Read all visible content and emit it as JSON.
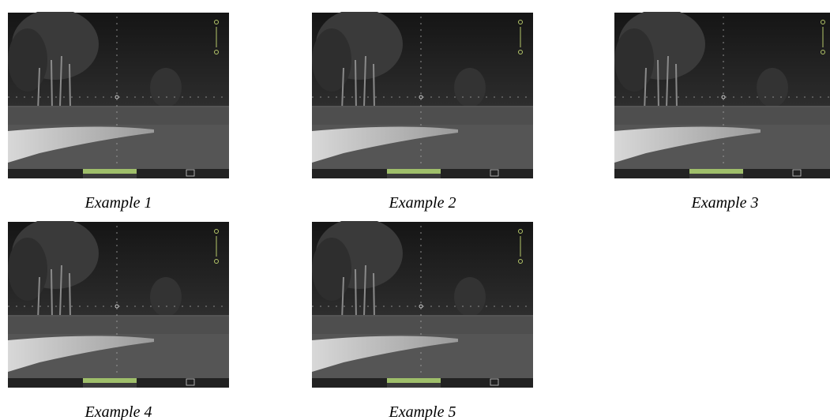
{
  "figure": {
    "panels": [
      {
        "caption": "Example 1"
      },
      {
        "caption": "Example 2"
      },
      {
        "caption": "Example 3"
      },
      {
        "caption": "Example 4"
      },
      {
        "caption": "Example 5"
      }
    ]
  }
}
